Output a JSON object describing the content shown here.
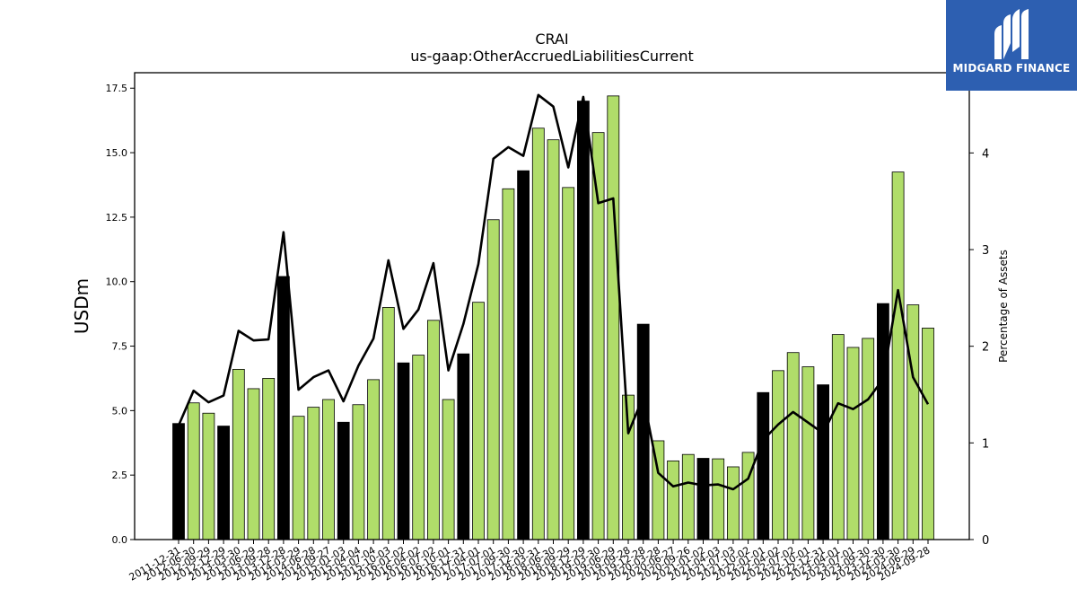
{
  "chart_data": {
    "type": "bar",
    "title": "CRAI",
    "subtitle": "us-gaap:OtherAccruedLiabilitiesCurrent",
    "ylabel": "USDm",
    "y2label": "Percentage of Assets",
    "ylim": [
      0,
      18.1
    ],
    "y2lim": [
      0,
      4.83
    ],
    "yticks": [
      "0.0",
      "2.5",
      "5.0",
      "7.5",
      "10.0",
      "12.5",
      "15.0",
      "17.5"
    ],
    "y2ticks": [
      "0",
      "1",
      "2",
      "3",
      "4"
    ],
    "colors": {
      "bar_green": "#b0dd6a",
      "bar_black": "#000000",
      "line": "#000000"
    },
    "categories": [
      "2011-12-31",
      "2012-06-30",
      "2012-09-29",
      "2012-12-29",
      "2013-03-30",
      "2013-06-29",
      "2013-09-28",
      "2013-12-28",
      "2014-03-29",
      "2014-06-28",
      "2014-09-27",
      "2015-01-03",
      "2015-04-04",
      "2015-07-04",
      "2015-10-03",
      "2016-01-02",
      "2016-04-02",
      "2016-07-02",
      "2016-10-01",
      "2016-12-31",
      "2017-04-01",
      "2017-07-01",
      "2017-09-30",
      "2017-12-30",
      "2018-03-31",
      "2018-06-30",
      "2018-09-29",
      "2018-12-29",
      "2019-03-30",
      "2019-06-29",
      "2019-09-28",
      "2019-12-28",
      "2020-03-28",
      "2020-06-27",
      "2020-09-26",
      "2021-01-02",
      "2021-04-03",
      "2021-07-03",
      "2021-10-02",
      "2022-01-01",
      "2022-04-02",
      "2022-07-02",
      "2022-10-01",
      "2022-12-31",
      "2023-04-01",
      "2023-07-01",
      "2023-09-30",
      "2023-12-30",
      "2024-03-30",
      "2024-06-29",
      "2024-09-28"
    ],
    "series": [
      {
        "kind": "bar",
        "values": [
          4.5,
          5.3,
          4.9,
          4.4,
          6.6,
          5.85,
          6.25,
          10.2,
          4.78,
          5.13,
          5.43,
          4.55,
          5.23,
          6.2,
          9.0,
          6.85,
          7.15,
          8.5,
          5.43,
          7.2,
          9.2,
          12.4,
          13.6,
          14.3,
          15.95,
          15.5,
          13.65,
          17.0,
          15.78,
          17.2,
          5.6,
          8.35,
          3.83,
          3.05,
          3.3,
          3.15,
          3.13,
          2.82,
          3.38,
          5.7,
          6.55,
          7.25,
          6.7,
          6.0,
          7.95,
          7.45,
          7.8,
          9.15,
          14.25,
          9.1,
          8.2
        ],
        "highlight": [
          true,
          false,
          false,
          true,
          false,
          false,
          false,
          true,
          false,
          false,
          false,
          true,
          false,
          false,
          false,
          true,
          false,
          false,
          false,
          true,
          false,
          false,
          false,
          true,
          false,
          false,
          false,
          true,
          false,
          false,
          false,
          true,
          false,
          false,
          false,
          true,
          false,
          false,
          false,
          true,
          false,
          false,
          false,
          true,
          false,
          false,
          false,
          true,
          false,
          false,
          false
        ]
      },
      {
        "kind": "line",
        "axis": "right",
        "values": [
          1.18,
          1.54,
          1.42,
          1.49,
          2.16,
          2.06,
          2.07,
          3.18,
          1.55,
          1.68,
          1.75,
          1.43,
          1.8,
          2.08,
          2.89,
          2.18,
          2.38,
          2.86,
          1.75,
          2.23,
          2.85,
          3.94,
          4.06,
          3.97,
          4.6,
          4.48,
          3.85,
          4.58,
          3.48,
          3.53,
          1.1,
          1.48,
          0.69,
          0.55,
          0.59,
          0.56,
          0.57,
          0.52,
          0.63,
          1.03,
          1.19,
          1.32,
          1.21,
          1.1,
          1.41,
          1.35,
          1.45,
          1.66,
          2.58,
          1.68,
          1.4
        ]
      }
    ]
  },
  "logo": {
    "text": "MIDGARD FINANCE"
  }
}
